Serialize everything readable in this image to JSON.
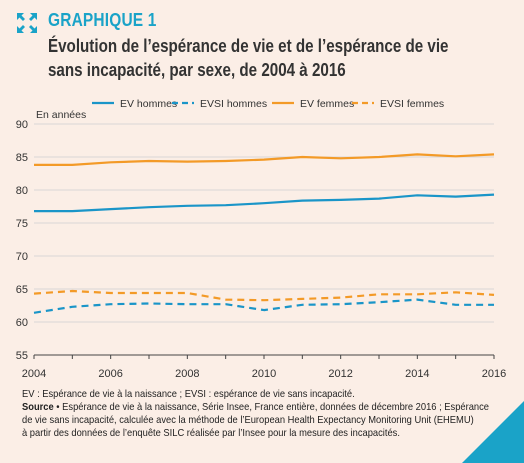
{
  "header": {
    "kicker": "GRAPHIQUE 1",
    "title_line1": "Évolution de l’espérance de vie et de l’espérance de vie",
    "title_line2": "sans incapacité, par sexe, de 2004 à 2016"
  },
  "colors": {
    "hommes": "#1a95c8",
    "femmes": "#f39a27",
    "accent": "#1aa3c8",
    "grid": "#cfcfcf",
    "background": "#fbeee6"
  },
  "icons": {
    "expand": "expand-arrows-icon",
    "corner": "corner-triangle"
  },
  "chart_data": {
    "type": "line",
    "ylabel": "En années",
    "ylim": [
      55,
      90
    ],
    "yticks": [
      55,
      60,
      65,
      70,
      75,
      80,
      85,
      90
    ],
    "xlim": [
      2004,
      2016
    ],
    "xticks": [
      2004,
      2006,
      2008,
      2010,
      2012,
      2014,
      2016
    ],
    "x": [
      2004,
      2005,
      2006,
      2007,
      2008,
      2009,
      2010,
      2011,
      2012,
      2013,
      2014,
      2015,
      2016
    ],
    "series": [
      {
        "name": "EV hommes",
        "style": "solid",
        "color": "#1a95c8",
        "values": [
          76.8,
          76.8,
          77.1,
          77.4,
          77.6,
          77.7,
          78.0,
          78.4,
          78.5,
          78.7,
          79.2,
          79.0,
          79.3
        ]
      },
      {
        "name": "EVSI hommes",
        "style": "dashed",
        "color": "#1a95c8",
        "values": [
          61.4,
          62.3,
          62.7,
          62.8,
          62.7,
          62.7,
          61.8,
          62.6,
          62.7,
          63.0,
          63.4,
          62.6,
          62.6
        ]
      },
      {
        "name": "EV femmes",
        "style": "solid",
        "color": "#f39a27",
        "values": [
          83.8,
          83.8,
          84.2,
          84.4,
          84.3,
          84.4,
          84.6,
          85.0,
          84.8,
          85.0,
          85.4,
          85.1,
          85.4
        ]
      },
      {
        "name": "EVSI femmes",
        "style": "dashed",
        "color": "#f39a27",
        "values": [
          64.3,
          64.7,
          64.4,
          64.4,
          64.4,
          63.4,
          63.3,
          63.5,
          63.7,
          64.2,
          64.2,
          64.5,
          64.1
        ]
      }
    ],
    "legend_position": "top",
    "grid": "horizontal"
  },
  "footer": {
    "note": "EV : Espérance de vie à la naissance ; EVSI : espérance de vie sans incapacité.",
    "source_label": "Source",
    "source_text_line1": " • Espérance de vie à la naissance, Série Insee, France entière, données de décembre 2016 ; Espérance",
    "source_text_line2": "de vie sans incapacité, calculée avec la méthode de l’European Health Expectancy Monitoring Unit (EHEMU)",
    "source_text_line3": "à partir des données de l’enquête SILC réalisée par l’Insee pour la mesure des incapacités."
  }
}
